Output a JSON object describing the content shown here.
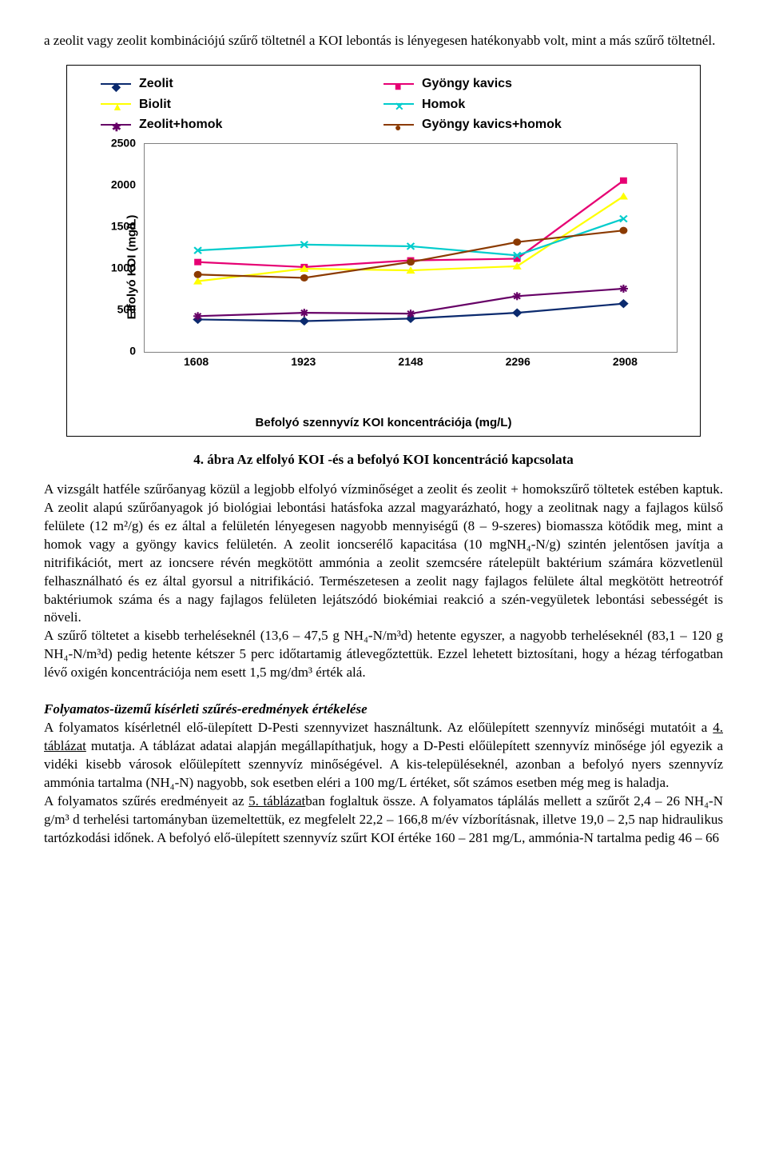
{
  "intro": "a zeolit vagy zeolit kombinációjú szűrő töltetnél a KOI lebontás is lényegesen hatékonyabb volt, mint a más szűrő töltetnél.",
  "chart": {
    "type": "line",
    "legend": [
      {
        "label": "Zeolit",
        "color": "#0b2a6e",
        "marker": "◆"
      },
      {
        "label": "Gyöngy kavics",
        "color": "#e60073",
        "marker": "■"
      },
      {
        "label": "Biolit",
        "color": "#ffff00",
        "marker": "▲"
      },
      {
        "label": "Homok",
        "color": "#00cccc",
        "marker": "✕"
      },
      {
        "label": "Zeolit+homok",
        "color": "#660066",
        "marker": "✱"
      },
      {
        "label": "Gyöngy kavics+homok",
        "color": "#8b3a00",
        "marker": "●"
      }
    ],
    "x_categories": [
      "1608",
      "1923",
      "2148",
      "2296",
      "2908"
    ],
    "y_ticks": [
      "0",
      "500",
      "1000",
      "1500",
      "2000",
      "2500"
    ],
    "ylim": [
      0,
      2500
    ],
    "ylabel": "Elfolyó KOI (mg/L)",
    "xlabel": "Befolyó szennyvíz KOI koncentrációja (mg/L)",
    "series": {
      "Zeolit": [
        390,
        370,
        400,
        470,
        580
      ],
      "Gyöngy kavics": [
        1080,
        1020,
        1100,
        1120,
        2060
      ],
      "Biolit": [
        850,
        1000,
        980,
        1030,
        1870
      ],
      "Homok": [
        1220,
        1290,
        1270,
        1160,
        1600
      ],
      "Zeolit+homok": [
        430,
        470,
        460,
        670,
        760
      ],
      "Gyöngy kavics+homok": [
        930,
        890,
        1080,
        1320,
        1460
      ]
    },
    "background": "#ffffff",
    "grid_color": "#808080"
  },
  "caption": "4. ábra Az elfolyó KOI -és a befolyó KOI koncentráció kapcsolata",
  "para1": "A vizsgált hatféle szűrőanyag közül a legjobb elfolyó vízminőséget a zeolit és zeolit + homokszűrő töltetek estében kaptuk. A zeolit alapú szűrőanyagok jó biológiai lebontási hatásfoka azzal magyarázható, hogy a zeolitnak nagy a fajlagos külső felülete (12 m²/g) és ez által a felületén lényegesen nagyobb mennyiségű (8 – 9-szeres) biomassza kötődik meg, mint a homok vagy a gyöngy kavics felületén. A zeolit ioncserélő kapacitása (10 mgNH₄-N/g) szintén jelentősen javítja a nitrifikációt, mert az ioncsere révén megkötött ammónia a zeolit szemcsére rátelepült baktérium számára közvetlenül felhasználható és ez által gyorsul a nitrifikáció. Természetesen a zeolit nagy fajlagos felülete által megkötött hetreotróf baktériumok száma és a nagy fajlagos felületen lejátszódó biokémiai reakció a szén-vegyületek lebontási sebességét is növeli.",
  "para2": "A szűrő töltetet a kisebb terheléseknél (13,6 – 47,5 g NH₄-N/m³d) hetente egyszer, a nagyobb terheléseknél (83,1 – 120 g NH₄-N/m³d) pedig hetente kétszer 5 perc időtartamig átlevegőztettük. Ezzel lehetett biztosítani, hogy a hézag térfogatban lévő oxigén koncentrációja nem esett 1,5 mg/dm³ érték alá.",
  "subhead": "Folyamatos-üzemű kísérleti szűrés-eredmények értékelése",
  "para3_a": "A folyamatos kísérletnél elő-ülepített D-Pesti szennyvizet használtunk. Az előülepített szennyvíz minőségi mutatóit a ",
  "para3_u1": "4. táblázat",
  "para3_b": " mutatja. A táblázat adatai alapján megállapíthatjuk, hogy a D-Pesti előülepített szennyvíz minősége jól egyezik a vidéki kisebb városok előülepített szennyvíz minőségével. A kis-településeknél, azonban a befolyó nyers szennyvíz ammónia tartalma (NH₄-N) nagyobb, sok esetben eléri a 100 mg/L értéket, sőt számos esetben még meg is haladja.",
  "para4_a": "A folyamatos szűrés eredményeit az ",
  "para4_u1": "5. táblázat",
  "para4_b": "ban foglaltuk össze. A folyamatos táplálás mellett a szűrőt 2,4 – 26 NH₄-N g/m³ d terhelési tartományban üzemeltettük, ez megfelelt 22,2 – 166,8 m/év vízborításnak, illetve 19,0 – 2,5 nap hidraulikus tartózkodási időnek. A befolyó elő-ülepített szennyvíz szűrt KOI értéke 160 – 281 mg/L, ammónia-N tartalma pedig  46 – 66"
}
